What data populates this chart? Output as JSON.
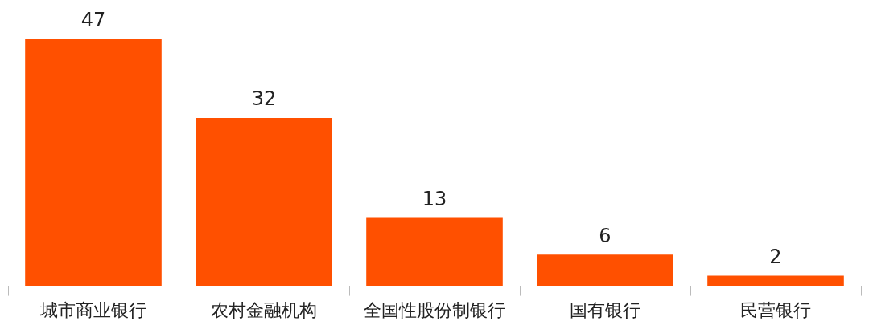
{
  "chart_data": {
    "type": "bar",
    "categories": [
      "城市商业银行",
      "农村金融机构",
      "全国性股份制银行",
      "国有银行",
      "民营银行"
    ],
    "values": [
      47,
      32,
      13,
      6,
      2
    ],
    "color": "#ff5000",
    "data_labels": true,
    "grid": false,
    "legend": false
  }
}
